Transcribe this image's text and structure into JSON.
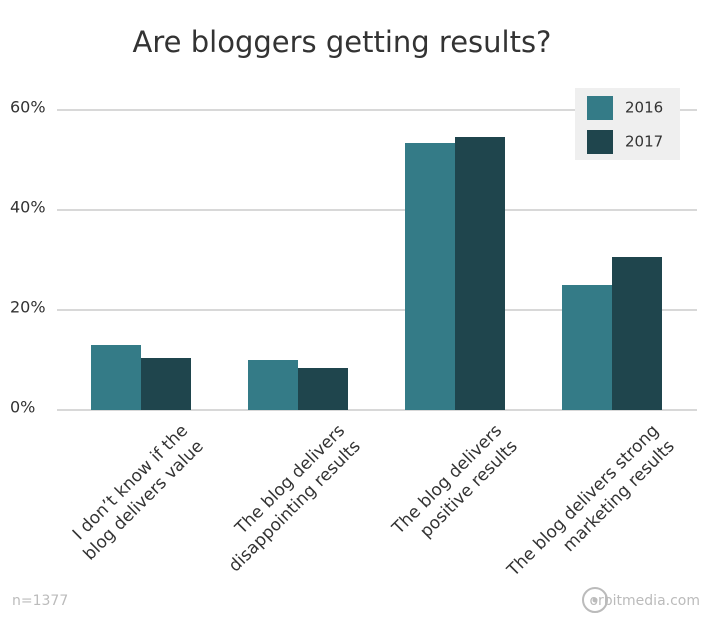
{
  "chart_data": {
    "type": "bar",
    "title": "Are bloggers getting results?",
    "categories": [
      [
        "I don’t know if the",
        "blog delivers value"
      ],
      [
        "The blog delivers",
        "disappointing results"
      ],
      [
        "The blog delivers",
        "positive results"
      ],
      [
        "The blog delivers strong",
        "marketing results"
      ]
    ],
    "series": [
      {
        "name": "2016",
        "color": "#347b87",
        "values": [
          13,
          10,
          53.4,
          25
        ]
      },
      {
        "name": "2017",
        "color": "#1f454d",
        "values": [
          10.4,
          8.4,
          54.6,
          30.6
        ]
      }
    ],
    "ylim": [
      0,
      60
    ],
    "yticks": [
      {
        "value": 0,
        "label": "0%"
      },
      {
        "value": 20,
        "label": "20%"
      },
      {
        "value": 40,
        "label": "40%"
      },
      {
        "value": 60,
        "label": "60%"
      }
    ],
    "grid": true,
    "legend": "top-right",
    "note": "n=1377",
    "source": "orbitmedia.com"
  }
}
